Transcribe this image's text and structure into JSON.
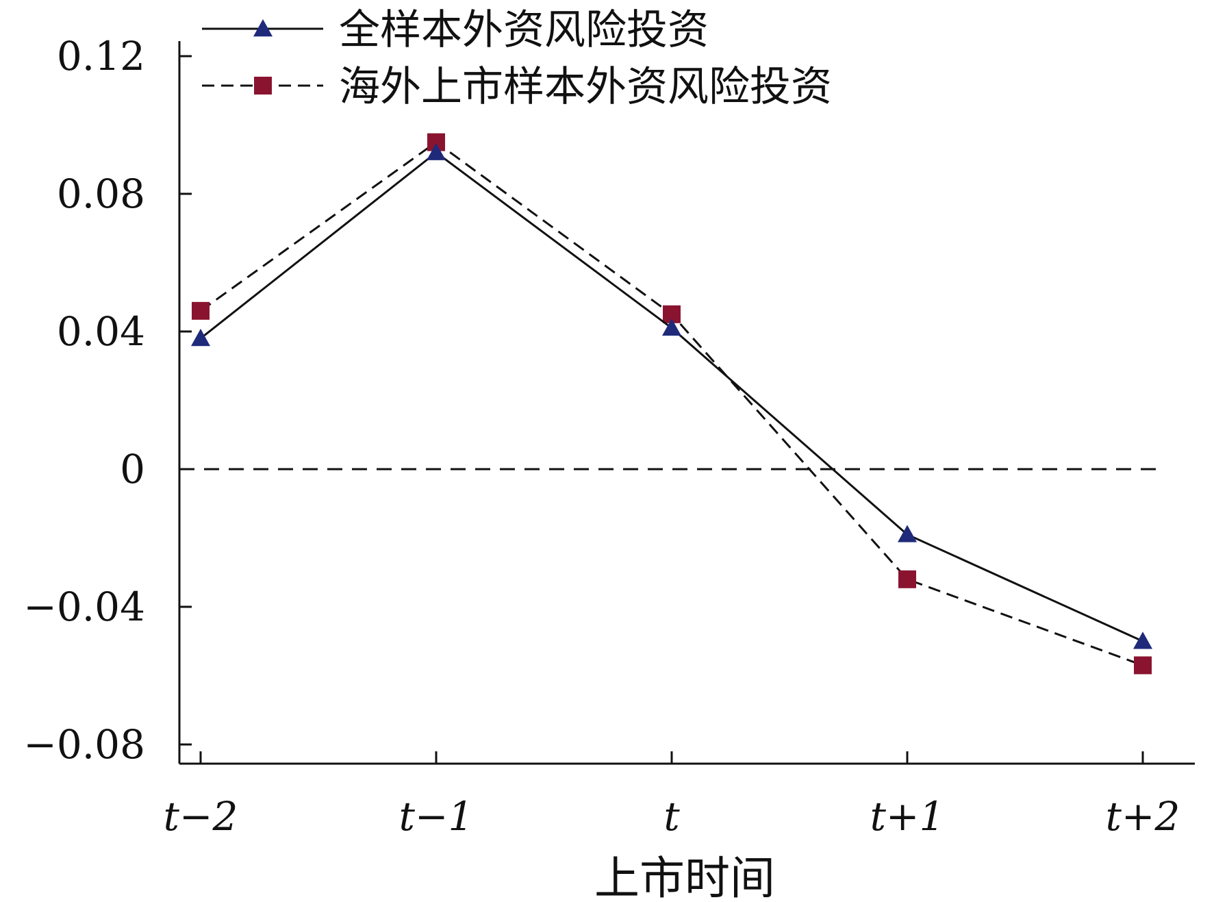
{
  "chart_data": {
    "type": "line",
    "title": "",
    "xlabel": "上市时间",
    "ylabel": "",
    "categories": [
      "t−2",
      "t−1",
      "t",
      "t+1",
      "t+2"
    ],
    "ylim": [
      -0.08,
      0.12
    ],
    "yticks": [
      "0.12",
      "0.08",
      "0.04",
      "0",
      "−0.04",
      "−0.08"
    ],
    "ytick_values": [
      0.12,
      0.08,
      0.04,
      0,
      -0.04,
      -0.08
    ],
    "reference_line": {
      "y": 0,
      "style": "dashed"
    },
    "legend_position": "top",
    "grid": false,
    "series": [
      {
        "name": "全样本外资风险投资",
        "values": [
          0.038,
          0.092,
          0.041,
          -0.019,
          -0.05
        ],
        "line_style": "solid",
        "marker": "triangle",
        "marker_color": "#1f2a7a",
        "line_color": "#111111"
      },
      {
        "name": "海外上市样本外资风险投资",
        "values": [
          0.046,
          0.095,
          0.045,
          -0.032,
          -0.057
        ],
        "line_style": "dashed",
        "marker": "square",
        "marker_color": "#8a1430",
        "line_color": "#111111"
      }
    ]
  }
}
